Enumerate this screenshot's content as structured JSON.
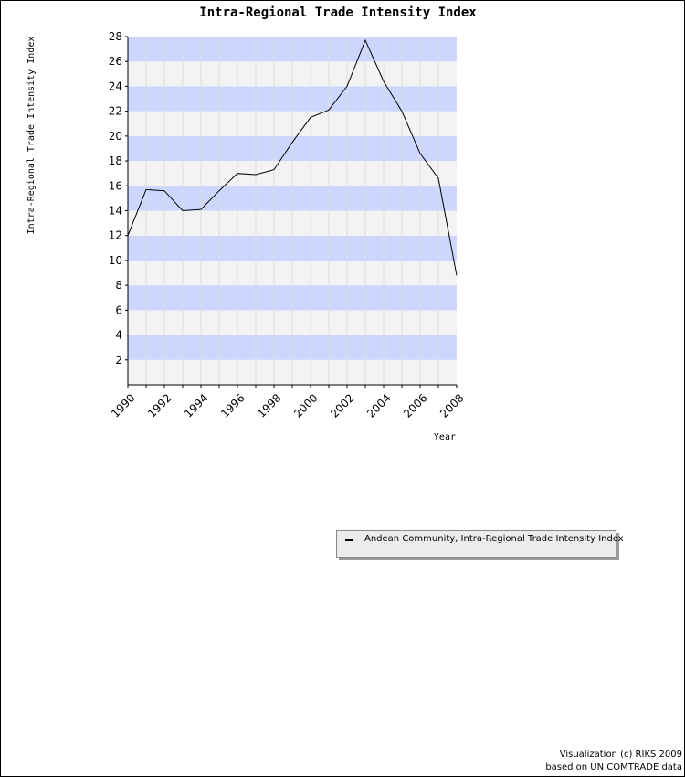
{
  "chart_data": {
    "type": "line",
    "title": "Intra-Regional Trade Intensity Index",
    "ylabel": "Intra-Regional Trade Intensity Index",
    "xlabel": "Year",
    "xlim": [
      1990,
      2008
    ],
    "ylim": [
      0,
      28
    ],
    "x_ticks": [
      1990,
      1992,
      1994,
      1996,
      1998,
      2000,
      2002,
      2004,
      2006,
      2008
    ],
    "y_ticks": [
      2,
      4,
      6,
      8,
      10,
      12,
      14,
      16,
      18,
      20,
      22,
      24,
      26,
      28
    ],
    "grid": true,
    "legend_position": "bottom-right",
    "series": [
      {
        "name": "Andean Community, Intra-Regional Trade Intensity Index",
        "color": "#000000",
        "x": [
          1990,
          1991,
          1992,
          1993,
          1994,
          1995,
          1996,
          1997,
          1998,
          1999,
          2000,
          2001,
          2002,
          2003,
          2004,
          2005,
          2006,
          2007,
          2008
        ],
        "y": [
          12.0,
          15.7,
          15.6,
          14.0,
          14.1,
          15.6,
          17.0,
          16.9,
          17.3,
          19.5,
          21.5,
          22.1,
          24.0,
          27.7,
          24.4,
          22.0,
          18.6,
          16.6,
          8.8
        ]
      }
    ]
  },
  "legend": {
    "label": "Andean Community, Intra-Regional Trade Intensity Index"
  },
  "credits": {
    "line1": "Visualization (c) RIKS 2009",
    "line2": "based on UN COMTRADE data"
  },
  "colors": {
    "band_blue": "#ccd6ff",
    "band_gray": "#f3f3f3",
    "line": "#000000"
  }
}
